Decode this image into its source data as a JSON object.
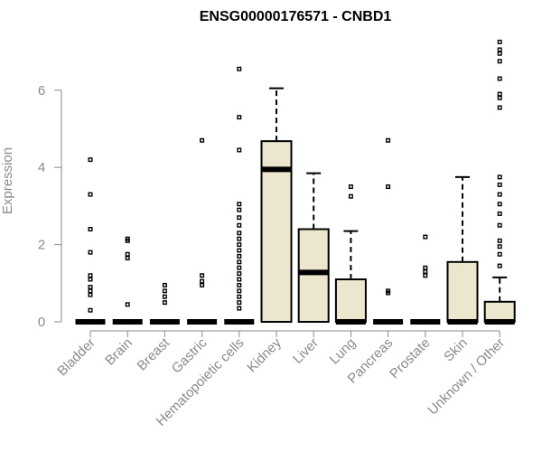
{
  "chart_data": {
    "type": "box",
    "title": "ENSG00000176571 - CNBD1",
    "xlabel": "",
    "ylabel": "Expression",
    "ylim": [
      0,
      7.4
    ],
    "yticks": [
      0,
      2,
      4,
      6
    ],
    "box_fill": "#ece6ce",
    "axis_color": "#8a8a8a",
    "categories": [
      "Bladder",
      "Brain",
      "Breast",
      "Gastric",
      "Hematopoietic cells",
      "Kidney",
      "Liver",
      "Lung",
      "Pancreas",
      "Prostate",
      "Skin",
      "Unknown / Other"
    ],
    "boxes": [
      {
        "q1": 0,
        "median": 0,
        "q3": 0,
        "whisker_low": 0,
        "whisker_high": 0,
        "outliers": [
          0.3,
          0.7,
          0.8,
          0.9,
          1.1,
          1.2,
          1.8,
          2.4,
          3.3,
          4.2
        ]
      },
      {
        "q1": 0,
        "median": 0,
        "q3": 0,
        "whisker_low": 0,
        "whisker_high": 0,
        "outliers": [
          0.45,
          1.65,
          1.75,
          2.1,
          2.15
        ]
      },
      {
        "q1": 0,
        "median": 0,
        "q3": 0,
        "whisker_low": 0,
        "whisker_high": 0,
        "outliers": [
          0.5,
          0.65,
          0.8,
          0.95
        ]
      },
      {
        "q1": 0,
        "median": 0,
        "q3": 0,
        "whisker_low": 0,
        "whisker_high": 0,
        "outliers": [
          0.95,
          1.05,
          1.2,
          4.7
        ]
      },
      {
        "q1": 0,
        "median": 0,
        "q3": 0,
        "whisker_low": 0,
        "whisker_high": 0,
        "outliers": [
          0.35,
          0.5,
          0.65,
          0.8,
          0.95,
          1.1,
          1.25,
          1.4,
          1.55,
          1.7,
          1.85,
          2.0,
          2.15,
          2.3,
          2.5,
          2.7,
          2.9,
          3.05,
          4.45,
          5.3,
          6.55
        ]
      },
      {
        "q1": 0,
        "median": 3.95,
        "q3": 4.68,
        "whisker_low": 0,
        "whisker_high": 6.05,
        "outliers": []
      },
      {
        "q1": 0,
        "median": 1.28,
        "q3": 2.4,
        "whisker_low": 0,
        "whisker_high": 3.85,
        "outliers": []
      },
      {
        "q1": 0,
        "median": 0,
        "q3": 1.1,
        "whisker_low": 0,
        "whisker_high": 2.35,
        "outliers": [
          3.25,
          3.5
        ]
      },
      {
        "q1": 0,
        "median": 0,
        "q3": 0,
        "whisker_low": 0,
        "whisker_high": 0,
        "outliers": [
          0.75,
          0.8,
          3.5,
          4.7
        ]
      },
      {
        "q1": 0,
        "median": 0,
        "q3": 0,
        "whisker_low": 0,
        "whisker_high": 0,
        "outliers": [
          1.2,
          1.3,
          1.4,
          2.2
        ]
      },
      {
        "q1": 0,
        "median": 0,
        "q3": 1.55,
        "whisker_low": 0,
        "whisker_high": 3.75,
        "outliers": []
      },
      {
        "q1": 0,
        "median": 0,
        "q3": 0.52,
        "whisker_low": 0,
        "whisker_high": 1.15,
        "outliers": [
          1.45,
          1.75,
          1.95,
          2.1,
          2.5,
          2.8,
          3.05,
          3.3,
          3.55,
          3.75,
          5.55,
          5.8,
          5.9,
          6.3,
          6.75,
          6.95,
          7.05,
          7.25
        ]
      }
    ]
  }
}
